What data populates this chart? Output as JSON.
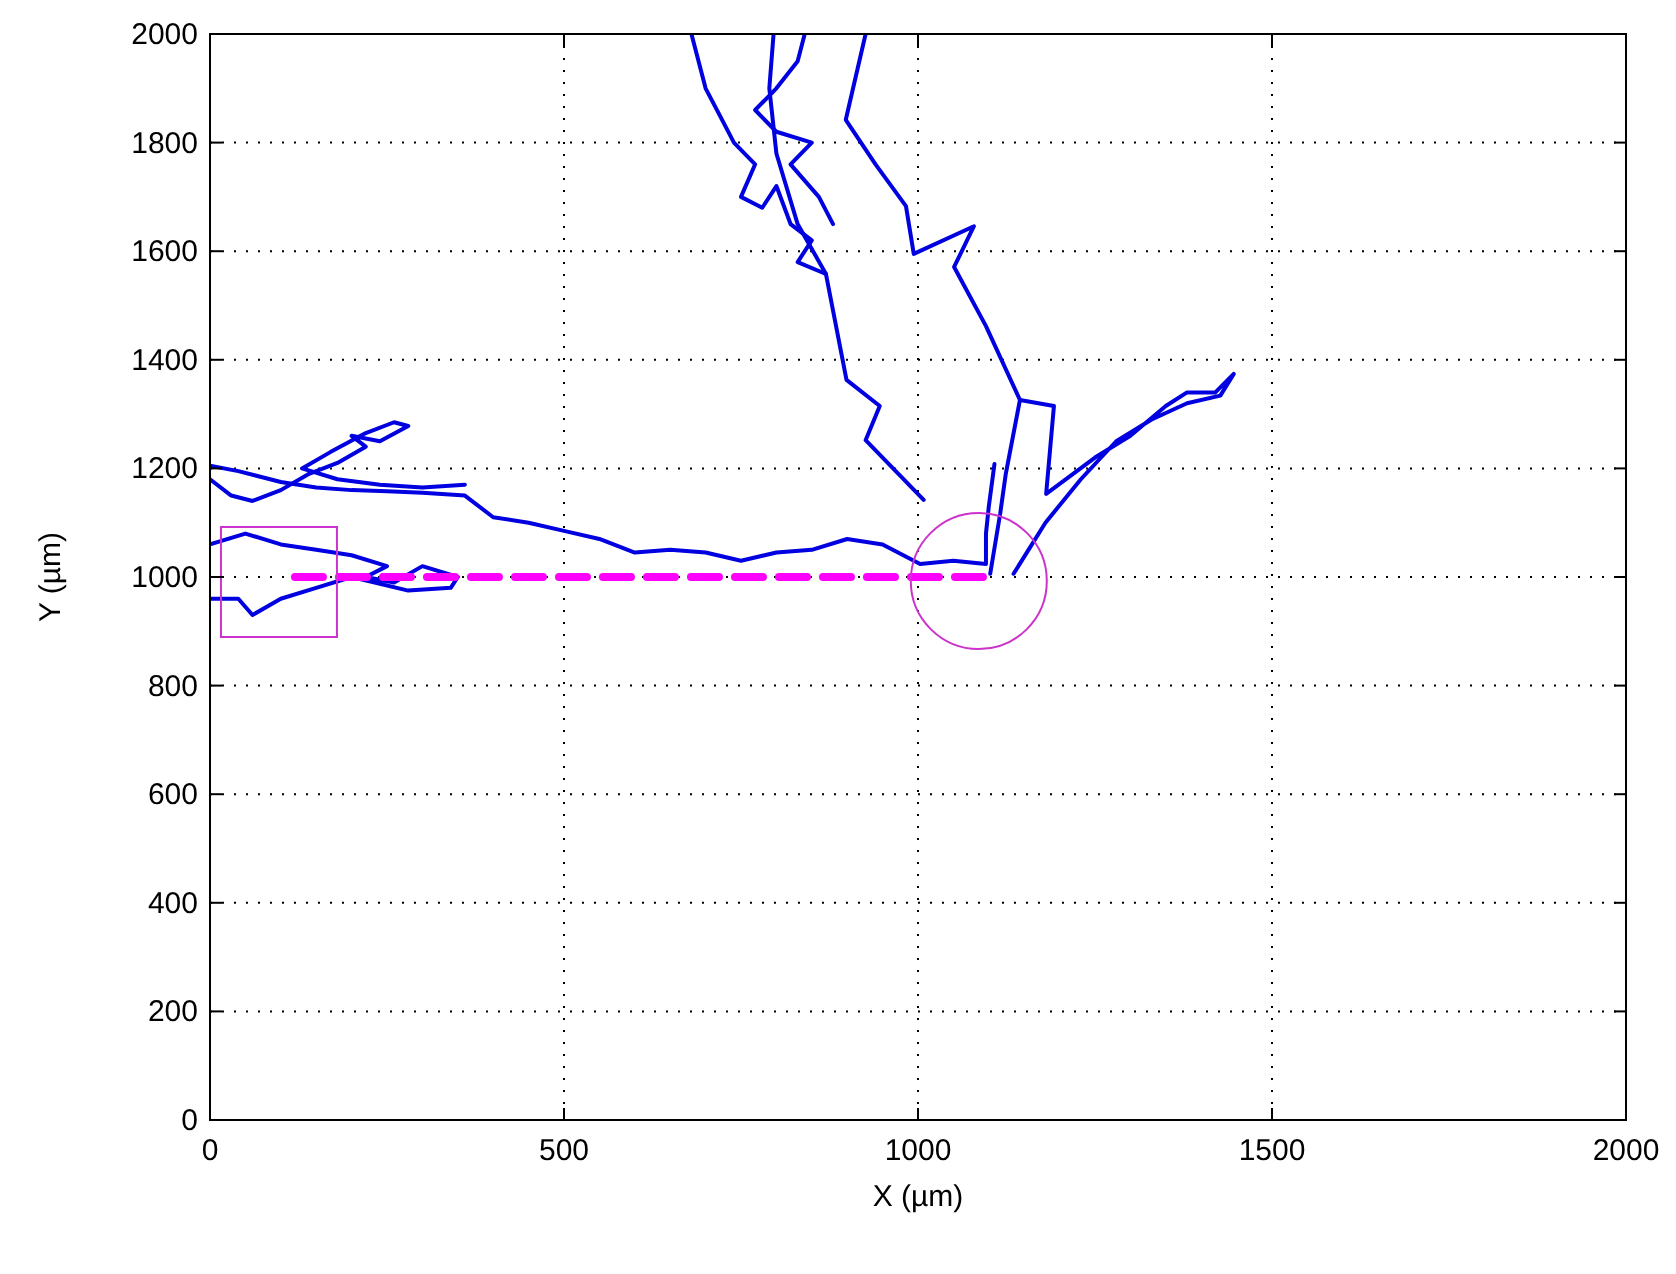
{
  "chart_data": {
    "type": "line",
    "xlabel": "X (µm)",
    "ylabel": "Y (µm)",
    "xlim": [
      0,
      2000
    ],
    "ylim": [
      0,
      2000
    ],
    "xticks": [
      0,
      500,
      1000,
      1500,
      2000
    ],
    "yticks": [
      0,
      200,
      400,
      600,
      800,
      1000,
      1200,
      1400,
      1600,
      1800,
      2000
    ],
    "grid": true,
    "marker": "none",
    "series": [
      {
        "color": "#0000e0",
        "x": [
          0,
          40,
          100,
          150,
          200,
          250,
          300,
          360,
          400,
          450,
          500,
          550,
          600,
          650,
          700,
          750,
          800,
          850,
          900,
          950,
          1003,
          1050,
          1096,
          1096,
          1100,
          1108
        ],
        "values": [
          1205,
          1195,
          1175,
          1165,
          1160,
          1158,
          1155,
          1150,
          1110,
          1100,
          1085,
          1070,
          1045,
          1050,
          1045,
          1030,
          1045,
          1050,
          1070,
          1060,
          1024,
          1030,
          1024,
          1080,
          1130,
          1208
        ]
      },
      {
        "color": "#0000e0",
        "x": [
          0,
          30,
          60,
          100,
          140,
          180,
          220,
          200,
          240,
          280,
          260,
          220,
          170,
          130,
          180,
          240,
          300,
          360
        ],
        "values": [
          1180,
          1150,
          1140,
          1160,
          1190,
          1210,
          1240,
          1260,
          1250,
          1278,
          1285,
          1265,
          1230,
          1200,
          1180,
          1170,
          1165,
          1170
        ]
      },
      {
        "color": "#0000e0",
        "x": [
          0,
          50,
          100,
          150,
          200,
          250,
          220,
          260,
          300,
          350,
          340,
          280,
          200,
          150,
          100,
          60,
          40,
          0
        ],
        "values": [
          1060,
          1080,
          1060,
          1050,
          1040,
          1020,
          1000,
          990,
          1020,
          1000,
          980,
          975,
          1000,
          980,
          960,
          930,
          960,
          960
        ]
      },
      {
        "color": "#0000e0",
        "x": [
          796,
          790,
          800,
          830,
          870,
          899,
          946,
          926,
          1008
        ],
        "values": [
          2000,
          1900,
          1780,
          1650,
          1558,
          1363,
          1315,
          1252,
          1142
        ]
      },
      {
        "color": "#0000e0",
        "x": [
          680,
          700,
          720,
          740,
          770,
          750,
          780,
          800,
          820,
          850,
          830,
          870
        ],
        "values": [
          2000,
          1900,
          1850,
          1800,
          1760,
          1700,
          1680,
          1720,
          1650,
          1620,
          1580,
          1558
        ]
      },
      {
        "color": "#0000e0",
        "x": [
          840,
          830,
          800,
          770,
          800,
          850,
          820,
          860,
          880
        ],
        "values": [
          2000,
          1950,
          1900,
          1860,
          1820,
          1800,
          1760,
          1700,
          1650
        ]
      },
      {
        "color": "#0000e0",
        "x": [
          926,
          898,
          940,
          983,
          994,
          1079,
          1051,
          1096,
          1144,
          1124,
          1116,
          1102
        ],
        "values": [
          2000,
          1842,
          1760,
          1683,
          1595,
          1646,
          1571,
          1462,
          1326,
          1190,
          1116,
          1006
        ]
      },
      {
        "color": "#0000e0",
        "x": [
          1144,
          1192,
          1181,
          1250,
          1300,
          1350,
          1380,
          1420,
          1446,
          1427,
          1380,
          1330,
          1280,
          1230,
          1180,
          1135
        ],
        "values": [
          1326,
          1315,
          1153,
          1220,
          1260,
          1315,
          1340,
          1340,
          1374,
          1334,
          1320,
          1290,
          1250,
          1180,
          1100,
          1006
        ]
      },
      {
        "color": "#ff00ff",
        "line_style": "dashed",
        "x": [
          120,
          1100
        ],
        "values": [
          1000,
          1000
        ]
      }
    ]
  }
}
